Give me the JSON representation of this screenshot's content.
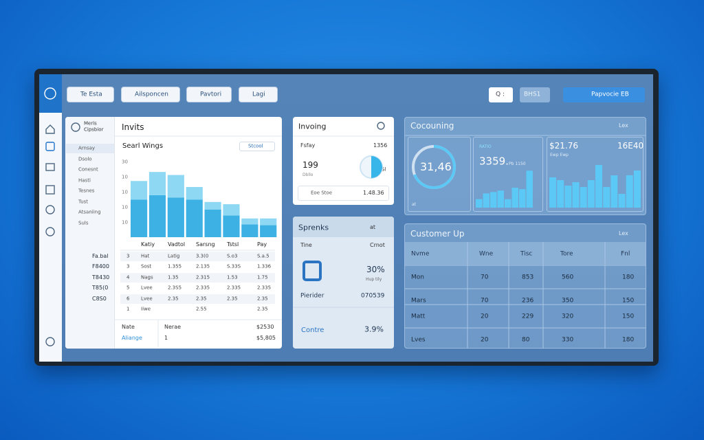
{
  "toolbar": {
    "buttons": [
      "Te Esta",
      "Ailsponcen",
      "Pavtori",
      "Lagi"
    ],
    "search": "Q :",
    "secondary": "BHS1",
    "primary": "Papvocie EB"
  },
  "invoices_panel": {
    "title": "Invits",
    "user": [
      "Meris",
      "Cipsbior"
    ],
    "nav": [
      "Arnsay",
      "Dsolo",
      "Conesnt",
      "Hasti",
      "Tesnes",
      "Tust",
      "Atsaniing",
      "Suls"
    ],
    "chart": {
      "type": "bar",
      "title": "Searl Wings",
      "filter": "Stcool",
      "y_labels": [
        "30",
        "10",
        "10",
        "10",
        "10"
      ],
      "ylim": [
        0,
        100
      ],
      "series": [
        {
          "color": "#3eb1e4",
          "values": [
            50,
            56,
            53,
            50,
            37,
            29,
            17,
            16
          ]
        },
        {
          "color": "#8fd8f4",
          "values": [
            25,
            31,
            30,
            17,
            10,
            15,
            8,
            9
          ]
        }
      ]
    },
    "side_values": [
      "Fa.bal",
      "F8400",
      "T8430",
      "T85(0",
      "C8S0"
    ],
    "table": {
      "header": [
        "Katiy",
        "Vadtol",
        "Sarsng",
        "Tstsl",
        "Pay"
      ],
      "rows": [
        [
          "3",
          "Hat",
          "Latig",
          "3.3(0",
          "S.o3",
          "S.a.5"
        ],
        [
          "3",
          "Sost",
          "1.355",
          "2.135",
          "S.33S",
          "1.336"
        ],
        [
          "4",
          "Nags",
          "1.35",
          "2.315",
          "1.53",
          "1.75"
        ],
        [
          "5",
          "Lvee",
          "2.3S5",
          "2.335",
          "2.335",
          "2.335"
        ],
        [
          "6",
          "Lvee",
          "2.35",
          "2.35",
          "2.35",
          "2.35"
        ],
        [
          "1",
          "Iiwe",
          "",
          "2.55",
          "",
          "2.35"
        ]
      ]
    },
    "footer": [
      [
        "Nate",
        "Nerae",
        "$2530"
      ],
      [
        "Aliange",
        "1",
        "$5,805"
      ]
    ]
  },
  "invoicing_panel": {
    "title": "Invoing",
    "label": "Fsfay",
    "amount": "1356",
    "big": "199",
    "small": "Dbllo",
    "donut_label": "Sl",
    "bottom": [
      "Eoe Stoe",
      "1.48.36"
    ]
  },
  "sprenks_panel": {
    "title": "Sprenks",
    "menu": "at",
    "head": [
      "Tine",
      "Crnot"
    ],
    "percent": "30%",
    "percent_note": "Hup tily",
    "row": [
      "Pierider",
      "070539"
    ],
    "footer": [
      "Contre",
      "3.9%"
    ]
  },
  "counting_panel": {
    "title": "Cocouning",
    "menu": "Lex",
    "gauge": "31,46",
    "gauge_note": "at",
    "mid": {
      "caption": "RATIO",
      "value": "3359.",
      "note": "Pb 1150"
    },
    "right": {
      "value": "$21.76",
      "value2": "16E40",
      "note": "Ewp Ewp"
    },
    "chart_left": {
      "type": "bar",
      "ylim": [
        0,
        60
      ],
      "color": "#5cc8f5",
      "values": [
        12,
        20,
        22,
        24,
        12,
        28,
        26,
        52
      ]
    },
    "chart_right": {
      "type": "bar",
      "ylim": [
        0,
        70
      ],
      "color": "#5cc8f5",
      "values": [
        44,
        40,
        32,
        37,
        30,
        40,
        62,
        30,
        47,
        20,
        47,
        54
      ]
    }
  },
  "customer_panel": {
    "title": "Customer Up",
    "menu": "Lex",
    "header": [
      "Nvme",
      "Wne",
      "Tisc",
      "Tore",
      "Fnl"
    ],
    "rows": [
      [
        "Mon",
        "70",
        "853",
        "560",
        "180"
      ],
      [
        "Mars",
        "70",
        "236",
        "350",
        "150"
      ],
      [
        "Matt",
        "20",
        "229",
        "320",
        "150"
      ],
      [
        "Lves",
        "20",
        "80",
        "330",
        "180"
      ]
    ]
  }
}
